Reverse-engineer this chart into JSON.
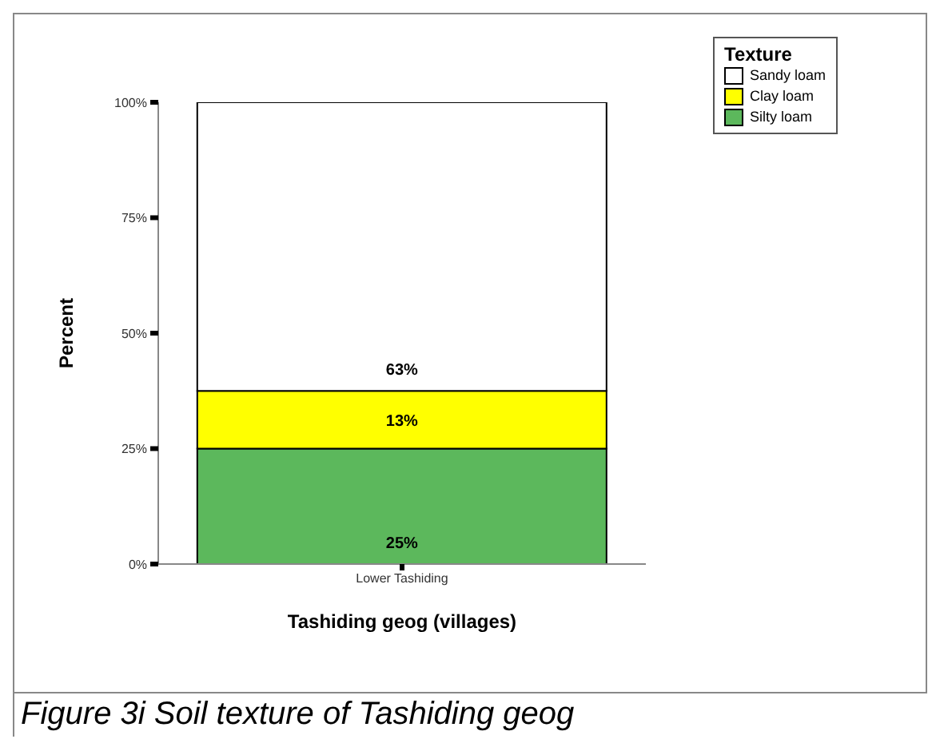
{
  "chart_data": {
    "type": "bar",
    "stacked": true,
    "categories": [
      "Lower Tashiding"
    ],
    "series": [
      {
        "name": "Silty loam",
        "color": "#5cb85c",
        "values": [
          25
        ],
        "value_labels": [
          "25%"
        ]
      },
      {
        "name": "Clay loam",
        "color": "#ffff00",
        "values": [
          12.5
        ],
        "value_labels": [
          "13%"
        ]
      },
      {
        "name": "Sandy loam",
        "color": "#ffffff",
        "values": [
          62.5
        ],
        "value_labels": [
          "63%"
        ]
      }
    ],
    "ylim": [
      0,
      100
    ],
    "yticks": [
      {
        "value": 0,
        "label": "0%"
      },
      {
        "value": 25,
        "label": "25%"
      },
      {
        "value": 50,
        "label": "50%"
      },
      {
        "value": 75,
        "label": "75%"
      },
      {
        "value": 100,
        "label": "100%"
      }
    ],
    "xlabel": "Tashiding geog (villages)",
    "ylabel": "Percent",
    "legend_title": "Texture",
    "legend": "top right",
    "grid": false,
    "annotations": [
      "Figure 3i  Soil texture of Tashiding geog"
    ]
  }
}
